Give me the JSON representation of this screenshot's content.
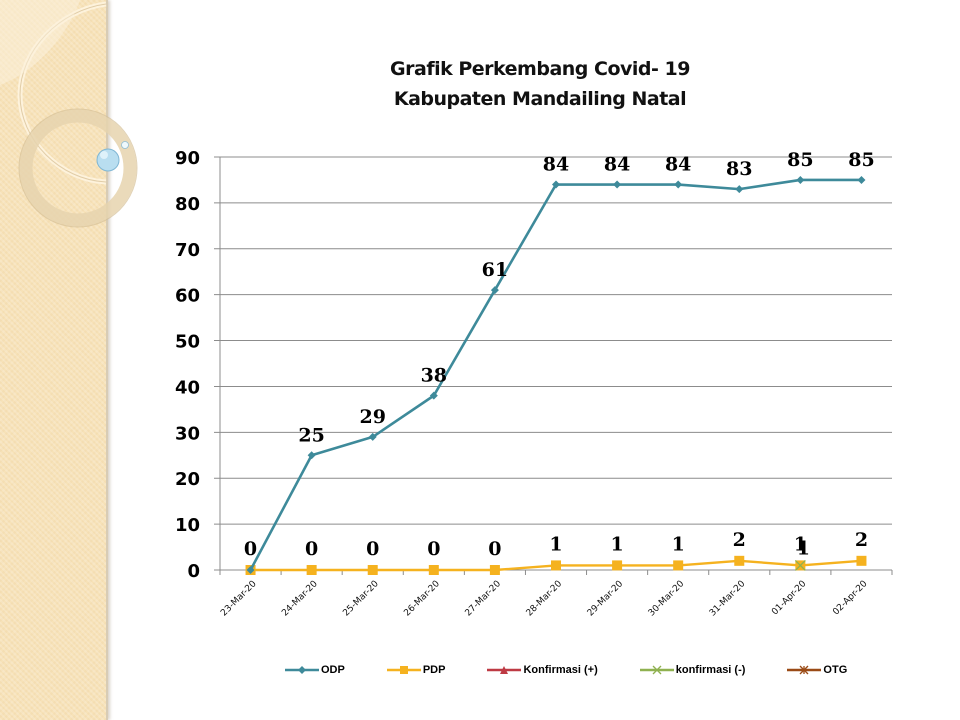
{
  "title": {
    "line1": "Grafik Perkembang Covid- 19",
    "line2": "Kabupaten Mandailing Natal"
  },
  "colors": {
    "odp": "#3e8a9a",
    "pdp": "#f5b21f",
    "konfirmasi_pos": "#be3a44",
    "konfirmasi_neg": "#8fb150",
    "otg": "#9a4a16",
    "gridline": "#8c8c8c",
    "side_panel": "#f7e2b8"
  },
  "legend": [
    {
      "name": "ODP",
      "marker": "diamond",
      "color": "#3e8a9a"
    },
    {
      "name": "PDP",
      "marker": "square",
      "color": "#f5b21f"
    },
    {
      "name": "Konfirmasi (+)",
      "marker": "triangle",
      "color": "#be3a44"
    },
    {
      "name": "konfirmasi (-)",
      "marker": "x",
      "color": "#8fb150"
    },
    {
      "name": "OTG",
      "marker": "star",
      "color": "#9a4a16"
    }
  ],
  "chart_data": {
    "type": "line",
    "title": "Grafik Perkembang Covid- 19 Kabupaten Mandailing Natal",
    "xlabel": "",
    "ylabel": "",
    "ylim": [
      0,
      90
    ],
    "yticks": [
      0,
      10,
      20,
      30,
      40,
      50,
      60,
      70,
      80,
      90
    ],
    "grid": true,
    "legend_position": "bottom",
    "categories": [
      "23-Mar-20",
      "24-Mar-20",
      "25-Mar-20",
      "26-Mar-20",
      "27-Mar-20",
      "28-Mar-20",
      "29-Mar-20",
      "30-Mar-20",
      "31-Mar-20",
      "01-Apr-20",
      "02-Apr-20"
    ],
    "series": [
      {
        "name": "ODP",
        "values": [
          0,
          25,
          29,
          38,
          61,
          84,
          84,
          84,
          83,
          85,
          85
        ],
        "data_labels": true
      },
      {
        "name": "PDP",
        "values": [
          0,
          0,
          0,
          0,
          0,
          1,
          1,
          1,
          2,
          1,
          2
        ],
        "data_labels": true
      },
      {
        "name": "Konfirmasi (+)",
        "values": [],
        "data_labels": false
      },
      {
        "name": "konfirmasi (-)",
        "values": [
          null,
          null,
          null,
          null,
          null,
          null,
          null,
          null,
          null,
          1,
          null
        ],
        "data_labels": true
      },
      {
        "name": "OTG",
        "values": [],
        "data_labels": false
      }
    ]
  }
}
